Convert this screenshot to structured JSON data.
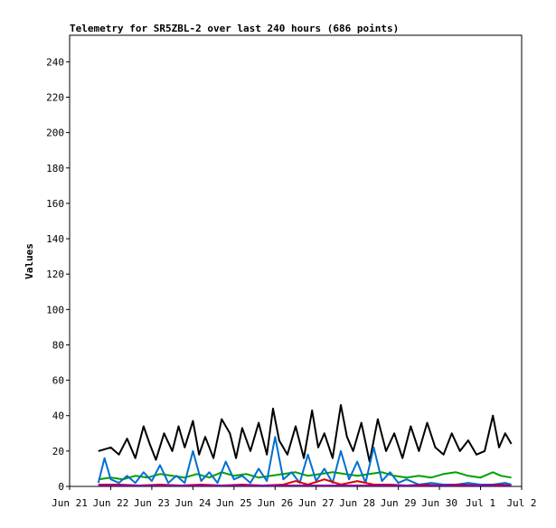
{
  "chart_data": {
    "type": "line",
    "title": "Telemetry for SR5ZBL-2 over last 240 hours (686 points)",
    "ylabel": "Values",
    "xlabel": "",
    "ylim": [
      0,
      255
    ],
    "yticks": [
      0,
      20,
      40,
      60,
      80,
      100,
      120,
      140,
      160,
      180,
      200,
      220,
      240
    ],
    "xlim": [
      0,
      11
    ],
    "xticks": [
      "Jun 21",
      "Jun 22",
      "Jun 23",
      "Jun 24",
      "Jun 25",
      "Jun 26",
      "Jun 27",
      "Jun 28",
      "Jun 29",
      "Jun 30",
      "Jul 1",
      "Jul 2"
    ],
    "x_unit": "days since Jun 21",
    "grid": false,
    "legend": "none",
    "series": [
      {
        "color": "#000000",
        "x": [
          0.7,
          1.0,
          1.2,
          1.4,
          1.6,
          1.8,
          1.95,
          2.1,
          2.3,
          2.5,
          2.65,
          2.8,
          3.0,
          3.15,
          3.3,
          3.5,
          3.7,
          3.9,
          4.05,
          4.2,
          4.4,
          4.6,
          4.8,
          4.95,
          5.1,
          5.3,
          5.5,
          5.7,
          5.9,
          6.05,
          6.2,
          6.4,
          6.6,
          6.75,
          6.9,
          7.1,
          7.3,
          7.5,
          7.7,
          7.9,
          8.1,
          8.3,
          8.5,
          8.7,
          8.9,
          9.1,
          9.3,
          9.5,
          9.7,
          9.9,
          10.1,
          10.3,
          10.45,
          10.6,
          10.75
        ],
        "y": [
          20,
          22,
          18,
          27,
          16,
          34,
          24,
          15,
          30,
          20,
          34,
          22,
          37,
          18,
          28,
          16,
          38,
          30,
          16,
          33,
          20,
          36,
          18,
          44,
          26,
          18,
          34,
          16,
          43,
          22,
          30,
          16,
          46,
          28,
          20,
          36,
          14,
          38,
          20,
          30,
          16,
          34,
          20,
          36,
          22,
          18,
          30,
          20,
          26,
          18,
          20,
          40,
          22,
          30,
          24
        ]
      },
      {
        "color": "#00a000",
        "x": [
          0.7,
          1.0,
          1.3,
          1.6,
          1.9,
          2.2,
          2.5,
          2.8,
          3.1,
          3.4,
          3.7,
          4.0,
          4.3,
          4.6,
          4.9,
          5.2,
          5.5,
          5.8,
          6.1,
          6.4,
          6.7,
          7.0,
          7.3,
          7.6,
          7.9,
          8.2,
          8.5,
          8.8,
          9.1,
          9.4,
          9.7,
          10.0,
          10.3,
          10.5,
          10.75
        ],
        "y": [
          4,
          5,
          4,
          6,
          5,
          7,
          6,
          5,
          7,
          5,
          8,
          6,
          7,
          5,
          6,
          7,
          8,
          6,
          7,
          8,
          7,
          6,
          7,
          8,
          6,
          5,
          6,
          5,
          7,
          8,
          6,
          5,
          8,
          6,
          5
        ]
      },
      {
        "color": "#0070d0",
        "x": [
          0.7,
          0.85,
          1.0,
          1.2,
          1.4,
          1.6,
          1.8,
          2.0,
          2.2,
          2.4,
          2.6,
          2.8,
          3.0,
          3.2,
          3.4,
          3.6,
          3.8,
          4.0,
          4.2,
          4.4,
          4.6,
          4.8,
          5.0,
          5.2,
          5.4,
          5.6,
          5.8,
          6.0,
          6.2,
          6.4,
          6.6,
          6.8,
          7.0,
          7.2,
          7.4,
          7.6,
          7.8,
          8.0,
          8.2,
          8.5,
          8.8,
          9.1,
          9.4,
          9.7,
          10.0,
          10.3,
          10.6,
          10.75
        ],
        "y": [
          2,
          16,
          4,
          2,
          6,
          2,
          8,
          3,
          12,
          2,
          6,
          2,
          20,
          3,
          8,
          2,
          14,
          4,
          6,
          2,
          10,
          3,
          28,
          4,
          8,
          2,
          18,
          3,
          10,
          2,
          20,
          4,
          14,
          2,
          22,
          3,
          8,
          2,
          4,
          1,
          2,
          1,
          1,
          2,
          1,
          1,
          2,
          1
        ]
      },
      {
        "color": "#e00000",
        "x": [
          0.7,
          1.2,
          1.7,
          2.2,
          2.7,
          3.2,
          3.7,
          4.2,
          4.7,
          5.2,
          5.5,
          5.8,
          6.2,
          6.6,
          7.0,
          7.4,
          7.8,
          8.2,
          8.6,
          9.0,
          9.5,
          10.0,
          10.5,
          10.75
        ],
        "y": [
          1,
          1,
          0.5,
          1,
          0.5,
          1,
          0.5,
          1,
          0.5,
          1,
          3,
          1,
          4,
          1,
          3,
          1,
          1,
          0.5,
          1,
          0.5,
          1,
          0.5,
          1,
          0.5
        ]
      },
      {
        "color": "#8000a0",
        "x": [
          0.7,
          2.0,
          4.0,
          6.0,
          8.0,
          10.0,
          10.75
        ],
        "y": [
          0.5,
          0.5,
          0.5,
          0.5,
          0.5,
          0.5,
          0.5
        ]
      }
    ]
  }
}
